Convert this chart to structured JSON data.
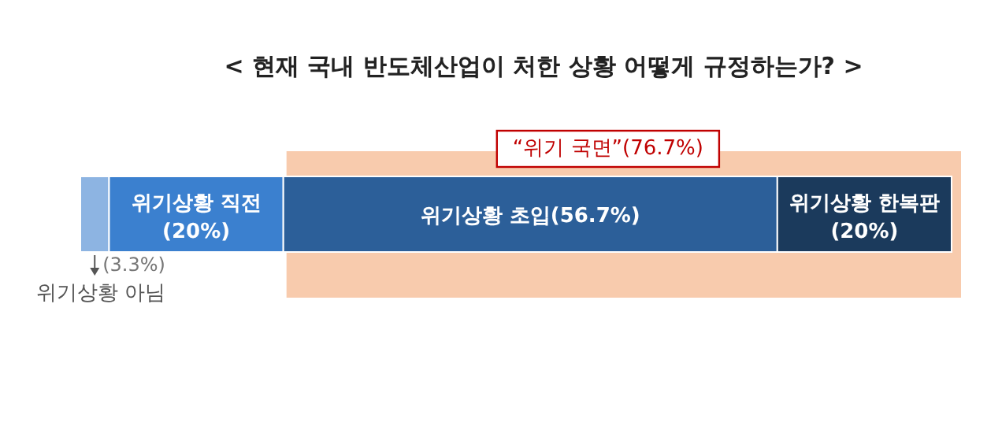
{
  "chart_data": {
    "type": "bar",
    "orientation": "horizontal",
    "stacked": true,
    "title": "< 현재 국내 반도체산업이 처한 상황 어떻게 규정하는가? >",
    "categories": [
      null
    ],
    "xlim": [
      0,
      100
    ],
    "series": [
      {
        "name": "위기상황 아님",
        "color": "#8db4e2",
        "values": [
          3.3
        ],
        "value_labels": [
          "(3.3%)"
        ]
      },
      {
        "name": "위기상황 직전",
        "color": "#3b80cf",
        "values": [
          20
        ],
        "value_labels": [
          "(20%)"
        ]
      },
      {
        "name": "위기상황 초입",
        "color": "#2c5f99",
        "values": [
          56.7
        ],
        "value_labels": [
          "(56.7%)"
        ]
      },
      {
        "name": "위기상황 한복판",
        "color": "#1b3a5c",
        "values": [
          20
        ],
        "value_labels": [
          "(20%)"
        ]
      }
    ],
    "bands": [
      {
        "axis": "x",
        "from": 23.3,
        "to": 100,
        "label": "“위기 국면”(76.7%)",
        "color": "#f8cbad"
      }
    ]
  }
}
